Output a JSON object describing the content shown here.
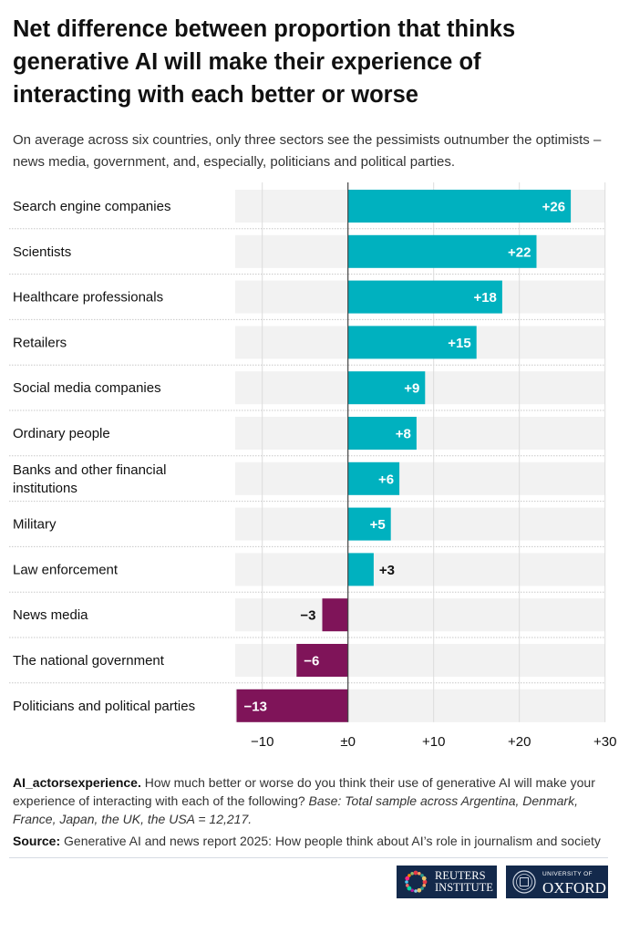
{
  "title": "Net difference between proportion that thinks generative AI will make their experience of interacting with each better or worse",
  "subtitle": "On average across six countries, only three sectors see the pessimists outnumber the optimists – news media, government, and, especially, politicians and political parties.",
  "chart_data": {
    "type": "bar",
    "orientation": "horizontal",
    "categories": [
      "Search engine companies",
      "Scientists",
      "Healthcare professionals",
      "Retailers",
      "Social media companies",
      "Ordinary people",
      "Banks and other financial institutions",
      "Military",
      "Law enforcement",
      "News media",
      "The national government",
      "Politicians and political parties"
    ],
    "category_lines": [
      [
        "Search engine companies"
      ],
      [
        "Scientists"
      ],
      [
        "Healthcare professionals"
      ],
      [
        "Retailers"
      ],
      [
        "Social media companies"
      ],
      [
        "Ordinary people"
      ],
      [
        "Banks and other financial",
        "institutions"
      ],
      [
        "Military"
      ],
      [
        "Law enforcement"
      ],
      [
        "News media"
      ],
      [
        "The national government"
      ],
      [
        "Politicians and political parties"
      ]
    ],
    "values": [
      26,
      22,
      18,
      15,
      9,
      8,
      6,
      5,
      3,
      -3,
      -6,
      -13
    ],
    "value_labels": [
      "+26",
      "+22",
      "+18",
      "+15",
      "+9",
      "+8",
      "+6",
      "+5",
      "+3",
      "−3",
      "−6",
      "−13"
    ],
    "xlim": [
      -13,
      30
    ],
    "xticks": [
      -10,
      0,
      10,
      20,
      30
    ],
    "xtick_labels": [
      "−10",
      "±0",
      "+10",
      "+20",
      "+30"
    ],
    "grid": true,
    "colors": {
      "positive": "#00b1bf",
      "negative": "#7f1459"
    }
  },
  "note": {
    "label": "AI_actorsexperience.",
    "text": "How much better or worse do you think their use of generative AI will make your experience of interacting with each of the following?",
    "base": "Base: Total sample across Argentina, Denmark, France, Japan, the UK, the USA = 12,217."
  },
  "source": {
    "label": "Source:",
    "text": "Generative AI and news report 2025: How people think about AI’s role in journalism and society"
  },
  "logos": {
    "reuters": [
      "REUTERS",
      "INSTITUTE"
    ],
    "oxford": [
      "UNIVERSITY OF",
      "OXFORD"
    ]
  }
}
